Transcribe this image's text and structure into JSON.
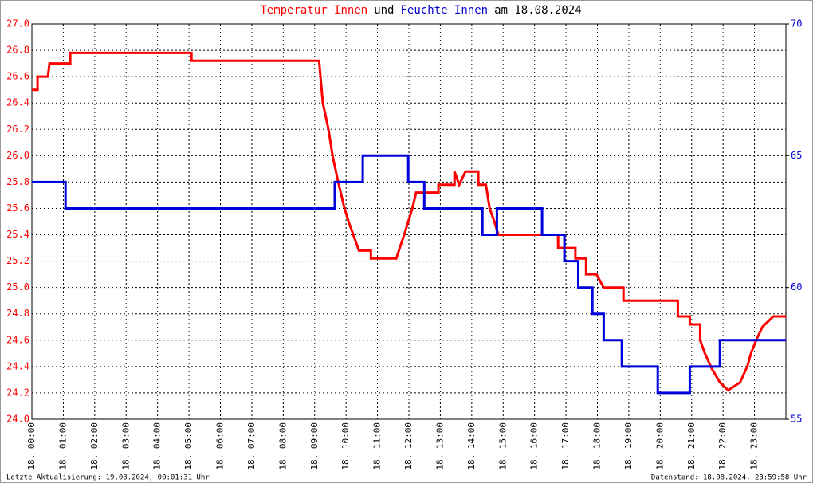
{
  "chart_data": {
    "type": "line",
    "title_parts": [
      {
        "text": "Temperatur Innen",
        "color": "#ff0000"
      },
      {
        "text": "und",
        "color": "#000000"
      },
      {
        "text": "Feuchte Innen",
        "color": "#0000cc"
      },
      {
        "text": "am 18.08.2024",
        "color": "#000000"
      }
    ],
    "footer_left": "Letzte Aktualisierung: 19.08.2024, 00:01:31 Uhr",
    "footer_right": "Datenstand: 18.08.2024, 23:59:58 Uhr",
    "xlim": [
      0,
      24
    ],
    "xticks": [
      {
        "value": 0,
        "label": "18. 00:00"
      },
      {
        "value": 1,
        "label": "18. 01:00"
      },
      {
        "value": 2,
        "label": "18. 02:00"
      },
      {
        "value": 3,
        "label": "18. 03:00"
      },
      {
        "value": 4,
        "label": "18. 04:00"
      },
      {
        "value": 5,
        "label": "18. 05:00"
      },
      {
        "value": 6,
        "label": "18. 06:00"
      },
      {
        "value": 7,
        "label": "18. 07:00"
      },
      {
        "value": 8,
        "label": "18. 08:00"
      },
      {
        "value": 9,
        "label": "18. 09:00"
      },
      {
        "value": 10,
        "label": "18. 10:00"
      },
      {
        "value": 11,
        "label": "18. 11:00"
      },
      {
        "value": 12,
        "label": "18. 12:00"
      },
      {
        "value": 13,
        "label": "18. 13:00"
      },
      {
        "value": 14,
        "label": "18. 14:00"
      },
      {
        "value": 15,
        "label": "18. 15:00"
      },
      {
        "value": 16,
        "label": "18. 16:00"
      },
      {
        "value": 17,
        "label": "18. 17:00"
      },
      {
        "value": 18,
        "label": "18. 18:00"
      },
      {
        "value": 19,
        "label": "18. 19:00"
      },
      {
        "value": 20,
        "label": "18. 20:00"
      },
      {
        "value": 21,
        "label": "18. 21:00"
      },
      {
        "value": 22,
        "label": "18. 22:00"
      },
      {
        "value": 23,
        "label": "18. 23:00"
      }
    ],
    "ylim": [
      24.0,
      27.0
    ],
    "yticks": [
      {
        "value": 24,
        "label": "24.0"
      },
      24.2,
      24.4,
      24.6,
      24.8,
      {
        "value": 25,
        "label": "25.0"
      },
      25.2,
      25.4,
      25.6,
      25.8,
      {
        "value": 26,
        "label": "26.0"
      },
      26.2,
      26.4,
      26.6,
      26.8,
      {
        "value": 27,
        "label": "27.0"
      }
    ],
    "y2lim": [
      55,
      70
    ],
    "y2ticks": [
      55,
      60,
      65,
      70
    ],
    "grid": true,
    "series": [
      {
        "name": "Temperatur Innen",
        "color": "#ff0000",
        "axis": "y",
        "x": [
          0,
          0.18,
          0.18,
          0.51,
          0.56,
          1.22,
          1.22,
          5.08,
          5.08,
          9.14,
          9.26,
          9.44,
          9.57,
          9.75,
          9.95,
          10.08,
          10.23,
          10.41,
          10.79,
          10.79,
          11.6,
          11.68,
          11.85,
          11.98,
          12.11,
          12.23,
          12.94,
          12.94,
          13.45,
          13.45,
          13.6,
          13.8,
          14.21,
          14.21,
          14.45,
          14.57,
          14.72,
          14.85,
          16.75,
          16.75,
          17.3,
          17.3,
          17.64,
          17.64,
          17.97,
          18.2,
          18.83,
          18.83,
          20.56,
          20.56,
          20.94,
          20.94,
          21.27,
          21.27,
          21.42,
          21.65,
          21.9,
          22.16,
          22.54,
          22.77,
          22.89,
          23.05,
          23.25,
          23.6,
          24
        ],
        "values": [
          26.5,
          26.5,
          26.6,
          26.6,
          26.7,
          26.7,
          26.78,
          26.78,
          26.72,
          26.72,
          26.4,
          26.2,
          26.0,
          25.8,
          25.6,
          25.5,
          25.4,
          25.28,
          25.28,
          25.22,
          25.22,
          25.28,
          25.4,
          25.5,
          25.6,
          25.72,
          25.72,
          25.78,
          25.78,
          25.88,
          25.78,
          25.88,
          25.88,
          25.78,
          25.78,
          25.6,
          25.5,
          25.4,
          25.4,
          25.3,
          25.3,
          25.22,
          25.22,
          25.1,
          25.1,
          25.0,
          25.0,
          24.9,
          24.9,
          24.78,
          24.78,
          24.72,
          24.72,
          24.6,
          24.5,
          24.38,
          24.28,
          24.22,
          24.28,
          24.4,
          24.5,
          24.6,
          24.7,
          24.78,
          24.78
        ]
      },
      {
        "name": "Feuchte Innen",
        "color": "#0000dd",
        "axis": "y2",
        "x": [
          0,
          1.07,
          1.07,
          9.64,
          9.64,
          10.53,
          10.53,
          11.98,
          11.98,
          12.49,
          12.49,
          14.34,
          14.34,
          14.8,
          14.8,
          16.24,
          16.24,
          16.95,
          16.95,
          17.39,
          17.39,
          17.84,
          17.84,
          18.2,
          18.2,
          18.78,
          18.78,
          19.92,
          19.92,
          20.94,
          20.94,
          21.9,
          21.9,
          24
        ],
        "values": [
          64,
          64,
          63,
          63,
          64,
          64,
          65,
          65,
          64,
          64,
          63,
          63,
          62,
          62,
          63,
          63,
          62,
          62,
          61,
          61,
          60,
          60,
          59,
          59,
          58,
          58,
          57,
          57,
          56,
          56,
          57,
          57,
          58,
          58
        ]
      }
    ]
  }
}
